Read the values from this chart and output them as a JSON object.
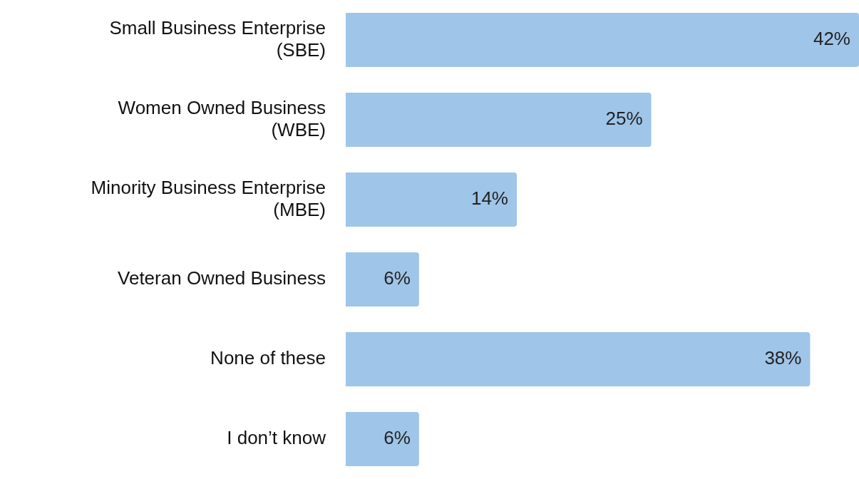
{
  "chart_data": {
    "type": "bar",
    "orientation": "horizontal",
    "categories": [
      "Small Business Enterprise\n(SBE)",
      "Women Owned Business\n(WBE)",
      "Minority Business Enterprise\n(MBE)",
      "Veteran Owned Business",
      "None of these",
      "I don’t know"
    ],
    "values": [
      42,
      25,
      14,
      6,
      38,
      6
    ],
    "value_labels": [
      "42%",
      "25%",
      "14%",
      "6%",
      "38%",
      "6%"
    ],
    "color": "#9fc5e8",
    "legend": false,
    "tick_labels": "y"
  }
}
